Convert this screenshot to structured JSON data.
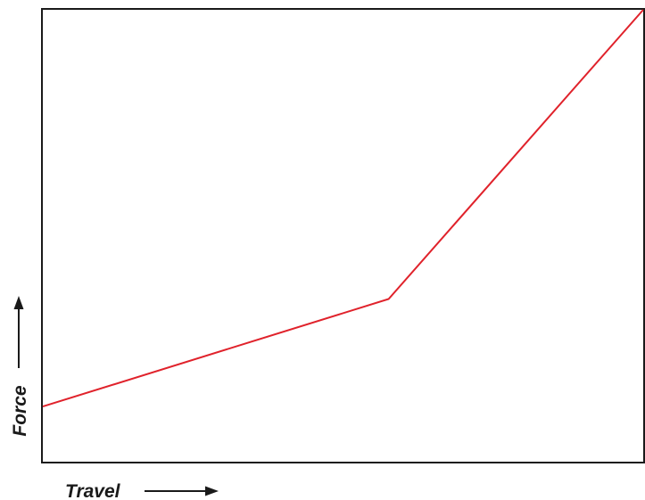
{
  "chart_data": {
    "type": "line",
    "xlabel": "Travel",
    "ylabel": "Force",
    "xlim": [
      0,
      10
    ],
    "ylim": [
      0,
      10
    ],
    "grid": false,
    "axis_arrows": true,
    "series": [
      {
        "color": "#e0222b",
        "x": [
          0,
          5.76,
          10
        ],
        "y": [
          1.22,
          3.6,
          10
        ]
      }
    ]
  },
  "colors": {
    "frame": "#1a1a1a",
    "series": "#e0222b",
    "background": "#ffffff"
  }
}
